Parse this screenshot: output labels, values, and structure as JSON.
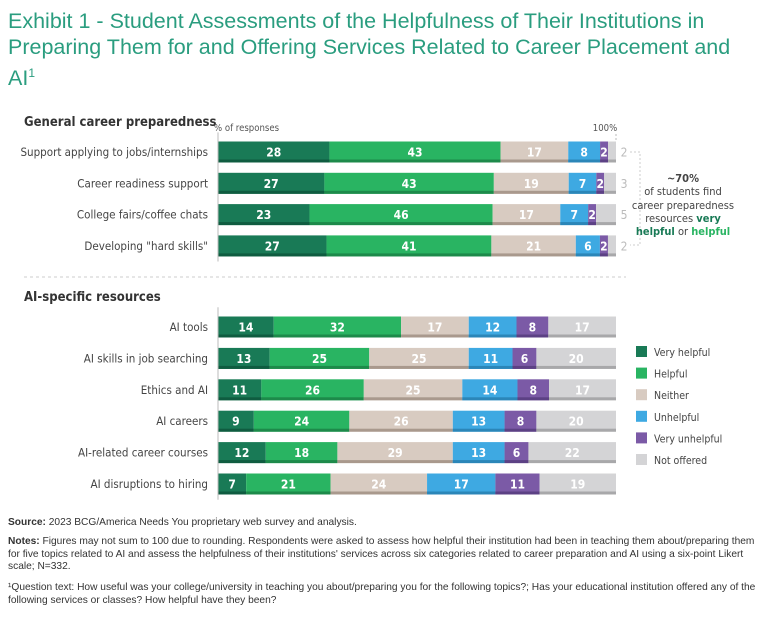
{
  "title": "Exhibit 1 - Student Assessments of the Helpfulness of Their Institutions in Preparing Them for and Offering Services Related to Career Placement and AI",
  "title_sup": "1",
  "colors": {
    "very_helpful": "#197a56",
    "helpful": "#29b462",
    "neither": "#d8cbc1",
    "unhelpful": "#3ea9e2",
    "very_unhelpful": "#7b5aa6",
    "not_offered": "#d4d4d6"
  },
  "chart_data": [
    {
      "type": "bar",
      "orientation": "horizontal",
      "stacked": true,
      "title": "General career preparedness",
      "axis_label": "% of responses",
      "axis_end_label": "100%",
      "categories": [
        "Support applying to jobs/internships",
        "Career readiness support",
        "College fairs/coffee chats",
        "Developing \"hard skills\""
      ],
      "series": [
        {
          "name": "Very helpful",
          "values": [
            28,
            27,
            23,
            27
          ]
        },
        {
          "name": "Helpful",
          "values": [
            43,
            43,
            46,
            41
          ]
        },
        {
          "name": "Neither",
          "values": [
            17,
            19,
            17,
            21
          ]
        },
        {
          "name": "Unhelpful",
          "values": [
            8,
            7,
            7,
            6
          ]
        },
        {
          "name": "Very unhelpful",
          "values": [
            2,
            2,
            2,
            2
          ]
        },
        {
          "name": "Not offered",
          "values": [
            2,
            3,
            5,
            2
          ]
        }
      ],
      "annotation": {
        "headline": "~70%",
        "line1": "of students find",
        "line2": "career preparedness",
        "line3a": "resources ",
        "very": "very",
        "helpful1": "helpful",
        "or": " or ",
        "helpful2": "helpful"
      }
    },
    {
      "type": "bar",
      "orientation": "horizontal",
      "stacked": true,
      "title": "AI-specific resources",
      "categories": [
        "AI tools",
        "AI skills in job searching",
        "Ethics and AI",
        "AI careers",
        "AI-related career courses",
        "AI disruptions to hiring"
      ],
      "series": [
        {
          "name": "Very helpful",
          "values": [
            14,
            13,
            11,
            9,
            12,
            7
          ]
        },
        {
          "name": "Helpful",
          "values": [
            32,
            25,
            26,
            24,
            18,
            21
          ]
        },
        {
          "name": "Neither",
          "values": [
            17,
            25,
            25,
            26,
            29,
            24
          ]
        },
        {
          "name": "Unhelpful",
          "values": [
            12,
            11,
            14,
            13,
            13,
            17
          ]
        },
        {
          "name": "Very unhelpful",
          "values": [
            8,
            6,
            8,
            8,
            6,
            11
          ]
        },
        {
          "name": "Not offered",
          "values": [
            17,
            20,
            17,
            20,
            22,
            19
          ]
        }
      ],
      "legend": [
        "Very helpful",
        "Helpful",
        "Neither",
        "Unhelpful",
        "Very unhelpful",
        "Not offered"
      ]
    }
  ],
  "source_label": "Source:",
  "source": " 2023 BCG/America Needs You proprietary web survey and analysis.",
  "notes_label": "Notes:",
  "notes": " Figures may not sum to 100 due to rounding. Respondents were asked to assess how helpful their institution had been in teaching them about/preparing them for five topics related to AI and assess the helpfulness of their institutions' services across six categories related to career preparation and AI using a six-point Likert scale; N=332.",
  "footnote": "¹Question text: How useful was your college/university in teaching you about/preparing you for the following topics?; Has your educational institution offered any of the following services or classes? How helpful have they been?"
}
